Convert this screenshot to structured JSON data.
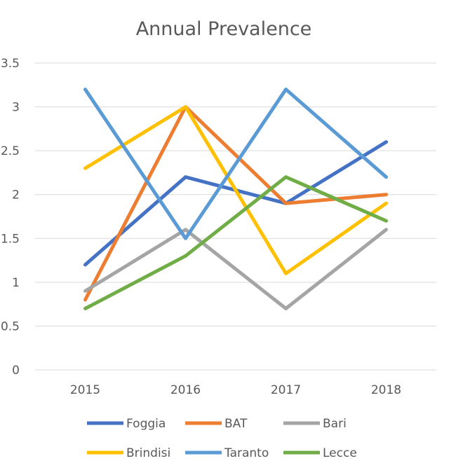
{
  "chart_data": {
    "type": "line",
    "title": "Annual Prevalence",
    "xlabel": "",
    "ylabel": "",
    "categories": [
      "2015",
      "2016",
      "2017",
      "2018"
    ],
    "ylim": [
      0,
      3.5
    ],
    "yticks": [
      "0",
      "0.5",
      "1",
      "1.5",
      "2",
      "2.5",
      "3",
      "3.5"
    ],
    "grid": true,
    "legend": "bottom",
    "series": [
      {
        "name": "Foggia",
        "color": "#4472c4",
        "values": [
          1.2,
          2.2,
          1.9,
          2.6
        ]
      },
      {
        "name": "BAT",
        "color": "#ed7d31",
        "values": [
          0.8,
          3.0,
          1.9,
          2.0
        ]
      },
      {
        "name": "Bari",
        "color": "#a5a5a5",
        "values": [
          0.9,
          1.6,
          0.7,
          1.6
        ]
      },
      {
        "name": "Brindisi",
        "color": "#ffc000",
        "values": [
          2.3,
          3.0,
          1.1,
          1.9
        ]
      },
      {
        "name": "Taranto",
        "color": "#5b9bd5",
        "values": [
          3.2,
          1.5,
          3.2,
          2.2
        ]
      },
      {
        "name": "Lecce",
        "color": "#70ad47",
        "values": [
          0.7,
          1.3,
          2.2,
          1.7
        ]
      }
    ]
  }
}
